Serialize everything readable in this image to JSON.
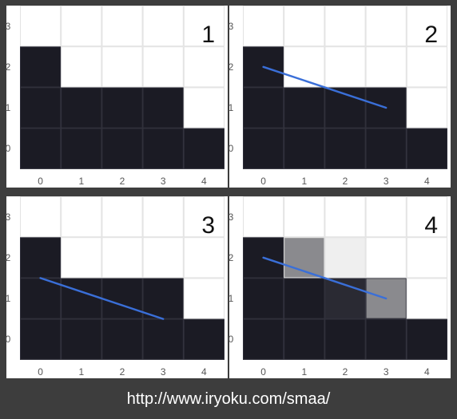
{
  "colors": {
    "background": "#3d3d3d",
    "panel": "#ffffff",
    "dark_pixel": "#1b1b24",
    "grid_light": "#e2e2e2",
    "grid_dark": "#2f2f3a",
    "edge_line": "#3a6fd8"
  },
  "axes": {
    "x_ticks": [
      "0",
      "1",
      "2",
      "3",
      "4"
    ],
    "y_ticks": [
      "3",
      "2",
      "1",
      "0"
    ]
  },
  "shape_heights": [
    3,
    2,
    2,
    2,
    1
  ],
  "edge_segment": {
    "from": [
      0.5,
      2.5
    ],
    "to": [
      3.5,
      1.5
    ]
  },
  "panels": [
    {
      "label": "1",
      "show_line": false,
      "blend": []
    },
    {
      "label": "2",
      "show_line": true,
      "blend": []
    },
    {
      "label": "3",
      "show_line": true,
      "line_shift": 0.5,
      "blend": []
    },
    {
      "label": "4",
      "show_line": true,
      "blend": [
        {
          "col": 1,
          "row": 2,
          "color": "#8a8a8e"
        },
        {
          "col": 2,
          "row": 2,
          "color": "#efefef"
        },
        {
          "col": 2,
          "row": 1,
          "color": "#2a2a33"
        },
        {
          "col": 3,
          "row": 1,
          "color": "#8a8a8e"
        }
      ]
    }
  ],
  "caption": "http://www.iryoku.com/smaa/"
}
